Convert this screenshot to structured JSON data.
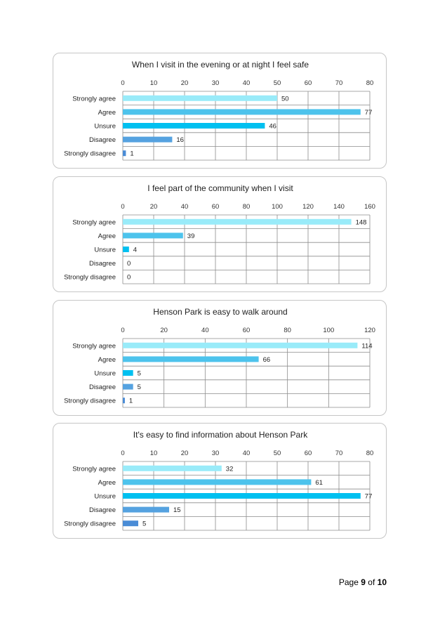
{
  "chart_data": [
    {
      "type": "bar",
      "orientation": "horizontal",
      "title": "When I visit in the evening or at night I feel safe",
      "categories": [
        "Strongly agree",
        "Agree",
        "Unsure",
        "Disagree",
        "Strongly disagree"
      ],
      "values": [
        50,
        77,
        46,
        16,
        1
      ],
      "xlim": [
        0,
        80
      ],
      "ticks": [
        "0",
        "10",
        "20",
        "30",
        "40",
        "50",
        "60",
        "70",
        "80"
      ],
      "colors": [
        "#99ebf9",
        "#4dc3ec",
        "#00c0f0",
        "#55a2e0",
        "#4a8cd6"
      ],
      "grid": true
    },
    {
      "type": "bar",
      "orientation": "horizontal",
      "title": "I feel part of the community when I visit",
      "categories": [
        "Strongly agree",
        "Agree",
        "Unsure",
        "Disagree",
        "Strongly disagree"
      ],
      "values": [
        148,
        39,
        4,
        0,
        0
      ],
      "xlim": [
        0,
        160
      ],
      "ticks": [
        "0",
        "20",
        "40",
        "60",
        "80",
        "100",
        "120",
        "140",
        "160"
      ],
      "colors": [
        "#99ebf9",
        "#4dc3ec",
        "#00c0f0",
        "#55a2e0",
        "#4a8cd6"
      ],
      "grid": true
    },
    {
      "type": "bar",
      "orientation": "horizontal",
      "title": "Henson Park is easy to walk around",
      "categories": [
        "Strongly agree",
        "Agree",
        "Unsure",
        "Disagree",
        "Strongly disagree"
      ],
      "values": [
        114,
        66,
        5,
        5,
        1
      ],
      "xlim": [
        0,
        120
      ],
      "ticks": [
        "0",
        "20",
        "40",
        "60",
        "80",
        "100",
        "120"
      ],
      "colors": [
        "#99ebf9",
        "#4dc3ec",
        "#00c0f0",
        "#55a2e0",
        "#4a8cd6"
      ],
      "grid": true
    },
    {
      "type": "bar",
      "orientation": "horizontal",
      "title": "It's easy to find information about Henson Park",
      "categories": [
        "Strongly agree",
        "Agree",
        "Unsure",
        "Disagree",
        "Strongly disagree"
      ],
      "values": [
        32,
        61,
        77,
        15,
        5
      ],
      "xlim": [
        0,
        80
      ],
      "ticks": [
        "0",
        "10",
        "20",
        "30",
        "40",
        "50",
        "60",
        "70",
        "80"
      ],
      "colors": [
        "#99ebf9",
        "#4dc3ec",
        "#00c0f0",
        "#55a2e0",
        "#4a8cd6"
      ],
      "grid": true
    }
  ],
  "footer": {
    "prefix": "Page",
    "current": "9",
    "of_label": "of",
    "total": "10"
  }
}
